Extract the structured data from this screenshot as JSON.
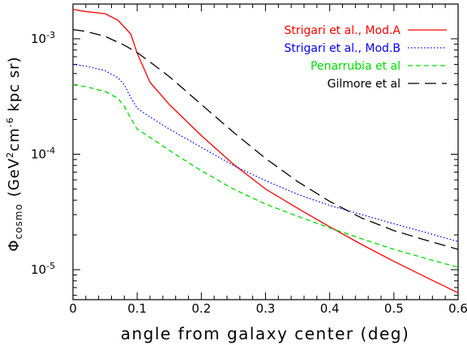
{
  "chart_data": {
    "type": "line",
    "title": "",
    "xlabel": "angle from galaxy center (deg)",
    "ylabel": "Φcosmo (GeV²cm⁻⁶ kpc sr)",
    "ylabel_parts": {
      "symbol": "Φ",
      "subscript": "cosmo",
      "text1": "(GeV",
      "sup1": "2",
      "text2": "cm",
      "sup2": "-6",
      "text3": " kpc sr)"
    },
    "xlim": [
      0,
      0.6
    ],
    "ylim": [
      5.5e-06,
      0.002
    ],
    "yscale": "log",
    "grid": false,
    "legend_position": "top-right",
    "x_ticks": [
      0,
      0.1,
      0.2,
      0.3,
      0.4,
      0.5,
      0.6
    ],
    "x_tick_labels": [
      "0",
      "0.1",
      "0.2",
      "0.3",
      "0.4",
      "0.5",
      "0.6"
    ],
    "y_ticks": [
      {
        "value": 1e-05,
        "base": "10",
        "exp": "-5"
      },
      {
        "value": 0.0001,
        "base": "10",
        "exp": "-4"
      },
      {
        "value": 0.001,
        "base": "10",
        "exp": "-3"
      }
    ],
    "series": [
      {
        "name": "Strigari et al., Mod.A",
        "color": "#ff0000",
        "dash": "solid",
        "x": [
          0,
          0.02,
          0.05,
          0.07,
          0.09,
          0.1,
          0.12,
          0.15,
          0.2,
          0.25,
          0.3,
          0.35,
          0.4,
          0.45,
          0.5,
          0.55,
          0.6
        ],
        "y": [
          0.0018,
          0.00172,
          0.00165,
          0.00145,
          0.0011,
          0.00075,
          0.00042,
          0.00027,
          0.000145,
          8.2e-05,
          5e-05,
          3.4e-05,
          2.35e-05,
          1.65e-05,
          1.18e-05,
          8.6e-06,
          6.3e-06
        ]
      },
      {
        "name": "Strigari et al., Mod.B",
        "color": "#0000ff",
        "dash": "dotted",
        "x": [
          0,
          0.02,
          0.05,
          0.07,
          0.08,
          0.09,
          0.1,
          0.12,
          0.15,
          0.2,
          0.25,
          0.3,
          0.35,
          0.4,
          0.45,
          0.5,
          0.55,
          0.6
        ],
        "y": [
          0.0006,
          0.00058,
          0.00053,
          0.00046,
          0.0004,
          0.00031,
          0.00025,
          0.00021,
          0.000165,
          0.000115,
          8e-05,
          5.9e-05,
          4.5e-05,
          3.6e-05,
          3e-05,
          2.5e-05,
          2.1e-05,
          1.75e-05
        ]
      },
      {
        "name": "Penarrubia et al",
        "color": "#00dd00",
        "dash": "dashed",
        "x": [
          0,
          0.02,
          0.05,
          0.07,
          0.08,
          0.09,
          0.1,
          0.12,
          0.15,
          0.2,
          0.25,
          0.3,
          0.35,
          0.4,
          0.45,
          0.5,
          0.55,
          0.6
        ],
        "y": [
          0.0004,
          0.000385,
          0.00035,
          0.000305,
          0.00026,
          0.000205,
          0.000165,
          0.00014,
          0.000108,
          7.2e-05,
          5e-05,
          3.7e-05,
          2.9e-05,
          2.3e-05,
          1.85e-05,
          1.5e-05,
          1.25e-05,
          1.05e-05
        ]
      },
      {
        "name": "Gilmore et al",
        "color": "#000000",
        "dash": "longdash",
        "x": [
          0,
          0.02,
          0.05,
          0.08,
          0.1,
          0.12,
          0.15,
          0.2,
          0.25,
          0.3,
          0.35,
          0.4,
          0.45,
          0.5,
          0.55,
          0.6
        ],
        "y": [
          0.0012,
          0.00116,
          0.00105,
          0.00088,
          0.00076,
          0.00063,
          0.00047,
          0.00027,
          0.000155,
          9.2e-05,
          5.8e-05,
          3.9e-05,
          2.8e-05,
          2.18e-05,
          1.8e-05,
          1.5e-05
        ]
      }
    ]
  }
}
